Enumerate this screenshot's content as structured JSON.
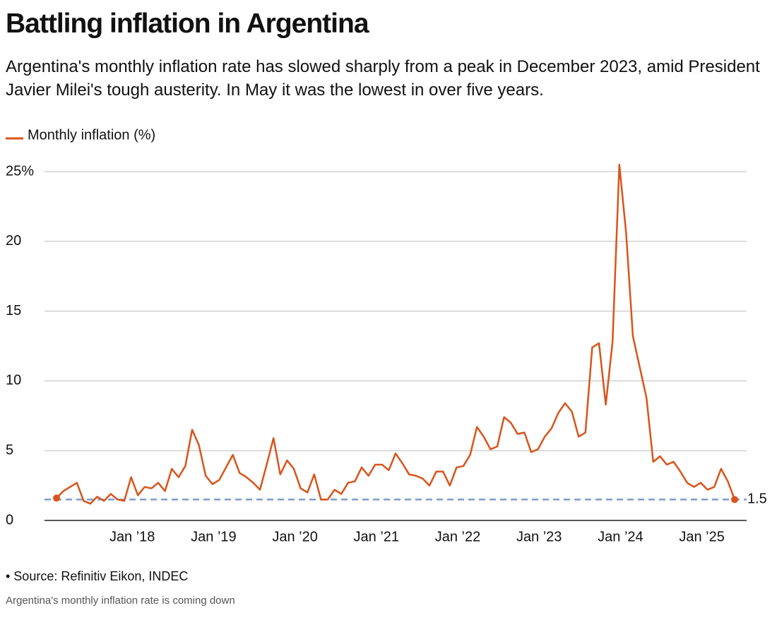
{
  "chart_data": {
    "type": "line",
    "title": "Battling inflation in Argentina",
    "subtitle": "Argentina's monthly inflation rate has slowed sharply from a peak in December 2023, amid President Javier Milei's tough austerity. In May it was the lowest in over five years.",
    "source": "• Source: Refinitiv Eikon, INDEC",
    "caption": "Argentina's monthly inflation rate is coming down",
    "x": [
      "2017-01",
      "2017-02",
      "2017-03",
      "2017-04",
      "2017-05",
      "2017-06",
      "2017-07",
      "2017-08",
      "2017-09",
      "2017-10",
      "2017-11",
      "2017-12",
      "2018-01",
      "2018-02",
      "2018-03",
      "2018-04",
      "2018-05",
      "2018-06",
      "2018-07",
      "2018-08",
      "2018-09",
      "2018-10",
      "2018-11",
      "2018-12",
      "2019-01",
      "2019-02",
      "2019-03",
      "2019-04",
      "2019-05",
      "2019-06",
      "2019-07",
      "2019-08",
      "2019-09",
      "2019-10",
      "2019-11",
      "2019-12",
      "2020-01",
      "2020-02",
      "2020-03",
      "2020-04",
      "2020-05",
      "2020-06",
      "2020-07",
      "2020-08",
      "2020-09",
      "2020-10",
      "2020-11",
      "2020-12",
      "2021-01",
      "2021-02",
      "2021-03",
      "2021-04",
      "2021-05",
      "2021-06",
      "2021-07",
      "2021-08",
      "2021-09",
      "2021-10",
      "2021-11",
      "2021-12",
      "2022-01",
      "2022-02",
      "2022-03",
      "2022-04",
      "2022-05",
      "2022-06",
      "2022-07",
      "2022-08",
      "2022-09",
      "2022-10",
      "2022-11",
      "2022-12",
      "2023-01",
      "2023-02",
      "2023-03",
      "2023-04",
      "2023-05",
      "2023-06",
      "2023-07",
      "2023-08",
      "2023-09",
      "2023-10",
      "2023-11",
      "2023-12",
      "2024-01",
      "2024-02",
      "2024-03",
      "2024-04",
      "2024-05",
      "2024-06",
      "2024-07",
      "2024-08",
      "2024-09",
      "2024-10",
      "2024-11",
      "2024-12",
      "2025-01",
      "2025-02",
      "2025-03",
      "2025-04",
      "2025-05"
    ],
    "series": [
      {
        "name": "Monthly inflation (%)",
        "color": "#d9541a",
        "values": [
          1.6,
          2.1,
          2.4,
          2.7,
          1.4,
          1.2,
          1.7,
          1.4,
          1.9,
          1.5,
          1.4,
          3.1,
          1.8,
          2.4,
          2.3,
          2.7,
          2.1,
          3.7,
          3.1,
          3.9,
          6.5,
          5.4,
          3.2,
          2.6,
          2.9,
          3.8,
          4.7,
          3.4,
          3.1,
          2.7,
          2.2,
          4.0,
          5.9,
          3.3,
          4.3,
          3.7,
          2.3,
          2.0,
          3.3,
          1.5,
          1.5,
          2.2,
          1.9,
          2.7,
          2.8,
          3.8,
          3.2,
          4.0,
          4.0,
          3.6,
          4.8,
          4.1,
          3.3,
          3.2,
          3.0,
          2.5,
          3.5,
          3.5,
          2.5,
          3.8,
          3.9,
          4.7,
          6.7,
          6.0,
          5.1,
          5.3,
          7.4,
          7.0,
          6.2,
          6.3,
          4.9,
          5.1,
          6.0,
          6.6,
          7.7,
          8.4,
          7.8,
          6.0,
          6.3,
          12.4,
          12.7,
          8.3,
          12.8,
          25.5,
          20.6,
          13.2,
          11.0,
          8.8,
          4.2,
          4.6,
          4.0,
          4.2,
          3.5,
          2.7,
          2.4,
          2.7,
          2.2,
          2.4,
          3.7,
          2.8,
          1.5
        ]
      }
    ],
    "reference_line": 1.5,
    "reference_color": "#7d9cc8",
    "xticks": [
      {
        "value": "2018-01",
        "label": "Jan ’18"
      },
      {
        "value": "2019-01",
        "label": "Jan ’19"
      },
      {
        "value": "2020-01",
        "label": "Jan ’20"
      },
      {
        "value": "2021-01",
        "label": "Jan ’21"
      },
      {
        "value": "2022-01",
        "label": "Jan ’22"
      },
      {
        "value": "2023-01",
        "label": "Jan ’23"
      },
      {
        "value": "2024-01",
        "label": "Jan ’24"
      },
      {
        "value": "2025-01",
        "label": "Jan ’25"
      }
    ],
    "ylim": [
      0,
      25
    ],
    "yticks": [
      0,
      5,
      10,
      15,
      20,
      {
        "value": 25,
        "label": "25%"
      }
    ],
    "grid": true
  }
}
